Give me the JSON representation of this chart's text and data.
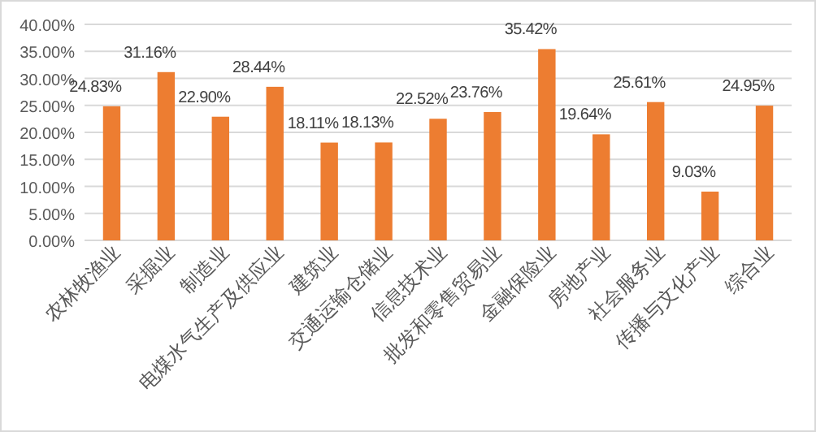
{
  "chart_data": {
    "type": "bar",
    "categories": [
      "农林牧渔业",
      "采掘业",
      "制造业",
      "电煤水气生产及供应业",
      "建筑业",
      "交通运输仓储业",
      "信息技术业",
      "批发和零售贸易业",
      "金融保险业",
      "房地产业",
      "社会服务业",
      "传播与文化产业",
      "综合业"
    ],
    "values": [
      24.83,
      31.16,
      22.9,
      28.44,
      18.11,
      18.13,
      22.52,
      23.76,
      35.42,
      19.64,
      25.61,
      9.03,
      24.95
    ],
    "value_labels": [
      "24.83%",
      "31.16%",
      "22.90%",
      "28.44%",
      "18.11%",
      "18.13%",
      "22.52%",
      "23.76%",
      "35.42%",
      "19.64%",
      "25.61%",
      "9.03%",
      "24.95%"
    ],
    "color": "#ed7d31",
    "ylim": [
      0,
      40
    ],
    "yticks": [
      {
        "value": 0,
        "label": "0.00%"
      },
      {
        "value": 5,
        "label": "5.00%"
      },
      {
        "value": 10,
        "label": "10.00%"
      },
      {
        "value": 15,
        "label": "15.00%"
      },
      {
        "value": 20,
        "label": "20.00%"
      },
      {
        "value": 25,
        "label": "25.00%"
      },
      {
        "value": 30,
        "label": "30.00%"
      },
      {
        "value": 35,
        "label": "35.00%"
      },
      {
        "value": 40,
        "label": "40.00%"
      }
    ],
    "grid": "y"
  }
}
